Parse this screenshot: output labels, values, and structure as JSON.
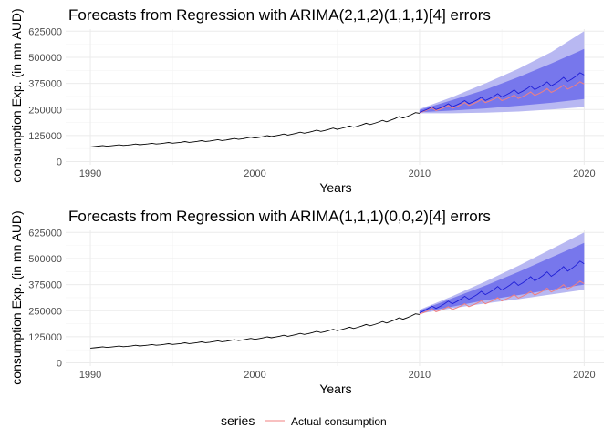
{
  "chart_data": [
    {
      "type": "line",
      "title": "Forecasts from Regression with ARIMA(2,1,2)(1,1,1)[4] errors",
      "xlabel": "Years",
      "ylabel": "consumption Exp. (in mn AUD)",
      "xlim": [
        1988.5,
        2021.2
      ],
      "ylim": [
        -15000,
        635000
      ],
      "x_ticks": [
        "1990",
        "2000",
        "2010",
        "2020"
      ],
      "x_tick_values": [
        1990,
        2000,
        2010,
        2020
      ],
      "y_ticks": [
        "0",
        "125000",
        "250000",
        "375000",
        "500000",
        "625000"
      ],
      "y_tick_values": [
        0,
        125000,
        250000,
        375000,
        500000,
        625000
      ],
      "grid": true,
      "history": {
        "name": "",
        "color": "#000000",
        "x": [
          1990,
          1992,
          1994,
          1996,
          1998,
          2000,
          2002,
          2004,
          2006,
          2008,
          2010
        ],
        "y": [
          72000,
          79000,
          86000,
          94000,
          103000,
          115000,
          130000,
          148000,
          168000,
          195000,
          232000
        ]
      },
      "forecast": {
        "name": "",
        "color": "#1f1fd6",
        "x": [
          2010,
          2012,
          2014,
          2016,
          2018,
          2020
        ],
        "y": [
          242000,
          270000,
          300000,
          335000,
          372000,
          415000
        ],
        "lo80": [
          237000,
          245000,
          255000,
          268000,
          282000,
          300000
        ],
        "hi80": [
          248000,
          295000,
          345000,
          405000,
          470000,
          540000
        ],
        "lo95": [
          232000,
          232000,
          235000,
          240000,
          250000,
          262000
        ],
        "hi95": [
          252000,
          310000,
          375000,
          445000,
          525000,
          625000
        ]
      },
      "actual": {
        "name": "Actual consumption",
        "color": "#f08080",
        "x": [
          2010,
          2012,
          2014,
          2016,
          2018,
          2020
        ],
        "y": [
          240000,
          262000,
          290000,
          310000,
          340000,
          372000
        ]
      }
    },
    {
      "type": "line",
      "title": "Forecasts from Regression with ARIMA(1,1,1)(0,0,2)[4] errors",
      "xlabel": "Years",
      "ylabel": "consumption Exp. (in mn AUD)",
      "xlim": [
        1988.5,
        2021.2
      ],
      "ylim": [
        -15000,
        635000
      ],
      "x_ticks": [
        "1990",
        "2000",
        "2010",
        "2020"
      ],
      "x_tick_values": [
        1990,
        2000,
        2010,
        2020
      ],
      "y_ticks": [
        "0",
        "125000",
        "250000",
        "375000",
        "500000",
        "625000"
      ],
      "y_tick_values": [
        0,
        125000,
        250000,
        375000,
        500000,
        625000
      ],
      "grid": true,
      "history": {
        "name": "",
        "color": "#000000",
        "x": [
          1990,
          1992,
          1994,
          1996,
          1998,
          2000,
          2002,
          2004,
          2006,
          2008,
          2010
        ],
        "y": [
          72000,
          79000,
          86000,
          94000,
          103000,
          115000,
          130000,
          148000,
          168000,
          195000,
          232000
        ]
      },
      "forecast": {
        "name": "",
        "color": "#1f1fd6",
        "x": [
          2010,
          2012,
          2014,
          2016,
          2018,
          2020
        ],
        "y": [
          245000,
          290000,
          335000,
          380000,
          425000,
          475000
        ],
        "lo80": [
          240000,
          270000,
          300000,
          325000,
          350000,
          375000
        ],
        "hi80": [
          250000,
          310000,
          370000,
          435000,
          505000,
          575000
        ],
        "lo95": [
          236000,
          262000,
          285000,
          305000,
          328000,
          350000
        ],
        "hi95": [
          254000,
          320000,
          390000,
          465000,
          545000,
          625000
        ]
      },
      "actual": {
        "name": "Actual consumption",
        "color": "#f08080",
        "x": [
          2010,
          2012,
          2014,
          2016,
          2018,
          2020
        ],
        "y": [
          240000,
          262000,
          290000,
          318000,
          348000,
          380000
        ]
      }
    }
  ],
  "legend": {
    "title": "series",
    "label": "Actual consumption",
    "position": "bottom",
    "color": "#f08080"
  },
  "colors": {
    "band95": "#b8b8f2",
    "band80": "#7777ec",
    "grid_major": "#ebebeb",
    "grid_minor": "#f4f4f4"
  }
}
